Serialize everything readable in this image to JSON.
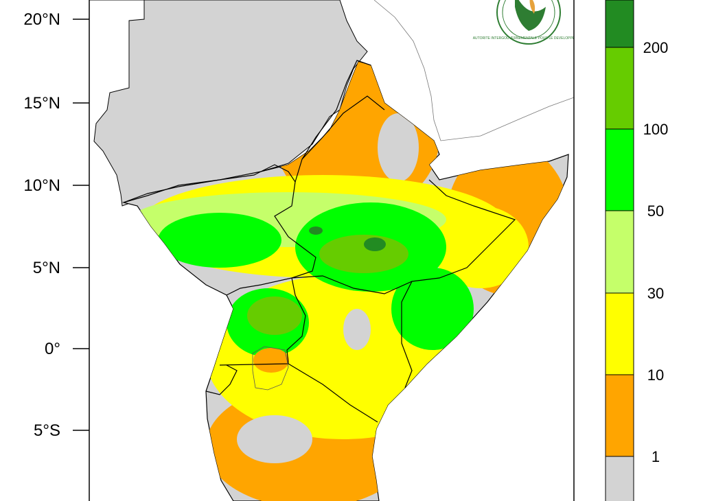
{
  "map": {
    "latitude_labels": [
      "20°N",
      "15°N",
      "10°N",
      "5°N",
      "0°",
      "5°S"
    ],
    "colors": {
      "ocean": "#ffffff",
      "outside_region": "#d3d3d3",
      "no_data_or_dry": "#d3d3d3",
      "borders": "#000000",
      "neighbour_outline": "#777777"
    },
    "logo_text": "AUTORITE INTERGOUVERNEMENTALE POUR LE DEVELOPPEMENT",
    "logo_icon": "igad-emblem-icon"
  },
  "colorbar": {
    "labels": [
      "200",
      "100",
      "50",
      "30",
      "10",
      "1"
    ],
    "bins": [
      {
        "range": "> 200",
        "color": "#228b22"
      },
      {
        "range": "100-200",
        "color": "#66cc00"
      },
      {
        "range": "50-100",
        "color": "#00ff00"
      },
      {
        "range": "30-50",
        "color": "#c5ff6a"
      },
      {
        "range": "10-30",
        "color": "#ffff00"
      },
      {
        "range": "1-10",
        "color": "#ffa500"
      },
      {
        "range": "< 1",
        "color": "#d3d3d3"
      }
    ]
  }
}
